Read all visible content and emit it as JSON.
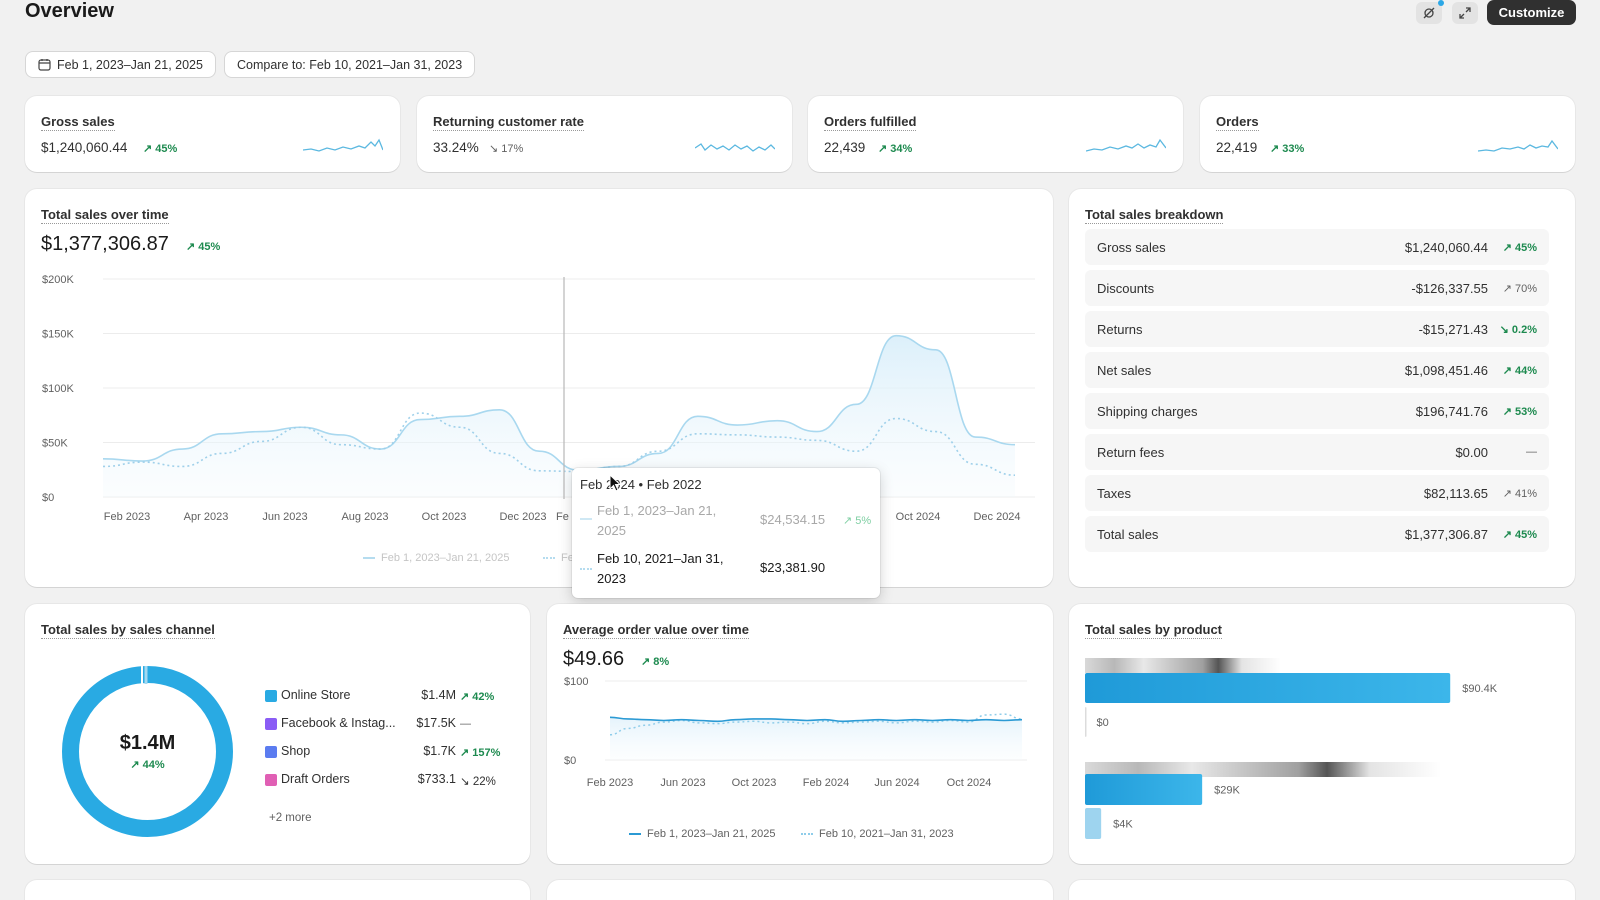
{
  "header": {
    "title": "Overview",
    "customize_label": "Customize",
    "date_range": "Feb 1, 2023–Jan 21, 2025",
    "compare": "Compare to: Feb 10, 2021–Jan 31, 2023"
  },
  "kpis": [
    {
      "title": "Gross sales",
      "value": "$1,240,060.44",
      "change": "45%",
      "direction": "up"
    },
    {
      "title": "Returning customer rate",
      "value": "33.24%",
      "change": "17%",
      "direction": "down"
    },
    {
      "title": "Orders fulfilled",
      "value": "22,439",
      "change": "34%",
      "direction": "up"
    },
    {
      "title": "Orders",
      "value": "22,419",
      "change": "33%",
      "direction": "up"
    }
  ],
  "sales_over_time": {
    "title": "Total sales over time",
    "value": "$1,377,306.87",
    "change": "45%",
    "y_ticks": [
      "$200K",
      "$150K",
      "$100K",
      "$50K",
      "$0"
    ],
    "x_ticks": [
      "Feb 2023",
      "Apr 2023",
      "Jun 2023",
      "Aug 2023",
      "Oct 2023",
      "Dec 2023",
      "Fe",
      "Oct 2024",
      "Dec 2024"
    ],
    "legend": [
      "Feb 1, 2023–Jan 21, 2025",
      "Fe"
    ],
    "chart_data": {
      "type": "line",
      "x": [
        "Feb 2023",
        "Mar 2023",
        "Apr 2023",
        "May 2023",
        "Jun 2023",
        "Jul 2023",
        "Aug 2023",
        "Sep 2023",
        "Oct 2023",
        "Nov 2023",
        "Dec 2023",
        "Jan 2024",
        "Feb 2024",
        "Mar 2024",
        "Apr 2024",
        "May 2024",
        "Jun 2024",
        "Jul 2024",
        "Aug 2024",
        "Sep 2024",
        "Oct 2024",
        "Nov 2024",
        "Dec 2024",
        "Jan 2025"
      ],
      "series": [
        {
          "name": "Feb 1, 2023–Jan 21, 2025",
          "values": [
            35000,
            33000,
            44000,
            58000,
            60000,
            64000,
            57000,
            44000,
            71000,
            74000,
            80000,
            42000,
            24500,
            28000,
            40000,
            74000,
            66000,
            70000,
            60000,
            85000,
            148000,
            135000,
            55000,
            48000
          ]
        },
        {
          "name": "Feb 10, 2021–Jan 31, 2023",
          "values": [
            28000,
            32000,
            28000,
            40000,
            51000,
            64000,
            48000,
            44000,
            77000,
            64000,
            40000,
            24000,
            23400,
            28000,
            42000,
            58000,
            57000,
            55000,
            52000,
            42000,
            72000,
            60000,
            30000,
            20000
          ]
        }
      ],
      "ylim": [
        0,
        200000
      ]
    },
    "tooltip": {
      "header": "Feb 2024 • Feb 2022",
      "row1_label": "Feb 1, 2023–Jan 21, 2025",
      "row1_value": "$24,534.15",
      "row1_change": "5%",
      "row2_label": "Feb 10, 2021–Jan 31, 2023",
      "row2_value": "$23,381.90"
    }
  },
  "breakdown": {
    "title": "Total sales breakdown",
    "rows": [
      {
        "label": "Gross sales",
        "value": "$1,240,060.44",
        "change": "45%",
        "direction": "up"
      },
      {
        "label": "Discounts",
        "value": "-$126,337.55",
        "change": "70%",
        "direction": "up-neutral"
      },
      {
        "label": "Returns",
        "value": "-$15,271.43",
        "change": "0.2%",
        "direction": "down-good"
      },
      {
        "label": "Net sales",
        "value": "$1,098,451.46",
        "change": "44%",
        "direction": "up"
      },
      {
        "label": "Shipping charges",
        "value": "$196,741.76",
        "change": "53%",
        "direction": "up"
      },
      {
        "label": "Return fees",
        "value": "$0.00",
        "change": "—",
        "direction": "none"
      },
      {
        "label": "Taxes",
        "value": "$82,113.65",
        "change": "41%",
        "direction": "up-neutral"
      },
      {
        "label": "Total sales",
        "value": "$1,377,306.87",
        "change": "45%",
        "direction": "up"
      }
    ]
  },
  "channel": {
    "title": "Total sales by sales channel",
    "center_value": "$1.4M",
    "center_change": "44%",
    "more": "+2 more",
    "items": [
      {
        "label": "Online Store",
        "value": "$1.4M",
        "change": "42%",
        "direction": "up",
        "color": "#29aae3"
      },
      {
        "label": "Facebook & Instag...",
        "value": "$17.5K",
        "change": "—",
        "direction": "none",
        "color": "#8a5cf5"
      },
      {
        "label": "Shop",
        "value": "$1.7K",
        "change": "157%",
        "direction": "up",
        "color": "#5b7cf0"
      },
      {
        "label": "Draft Orders",
        "value": "$733.1",
        "change": "22%",
        "direction": "down",
        "color": "#e05fb4"
      }
    ]
  },
  "aov": {
    "title": "Average order value over time",
    "value": "$49.66",
    "change": "8%",
    "y_ticks": [
      "$100",
      "$0"
    ],
    "x_ticks": [
      "Feb 2023",
      "Jun 2023",
      "Oct 2023",
      "Feb 2024",
      "Jun 2024",
      "Oct 2024"
    ],
    "legend": [
      "Feb 1, 2023–Jan 21, 2025",
      "Feb 10, 2021–Jan 31, 2023"
    ],
    "chart_data": {
      "type": "line",
      "x": [
        "Feb 2023",
        "Mar 2023",
        "Apr 2023",
        "May 2023",
        "Jun 2023",
        "Jul 2023",
        "Aug 2023",
        "Sep 2023",
        "Oct 2023",
        "Nov 2023",
        "Dec 2023",
        "Jan 2024",
        "Feb 2024",
        "Mar 2024",
        "Apr 2024",
        "May 2024",
        "Jun 2024",
        "Jul 2024",
        "Aug 2024",
        "Sep 2024",
        "Oct 2024",
        "Nov 2024",
        "Dec 2024",
        "Jan 2025"
      ],
      "series": [
        {
          "name": "Feb 1, 2023–Jan 21, 2025",
          "values": [
            54,
            52,
            51,
            50,
            51,
            50,
            49,
            51,
            52,
            52,
            51,
            50,
            51,
            49,
            50,
            51,
            50,
            51,
            50,
            51,
            50,
            51,
            50,
            51
          ]
        },
        {
          "name": "Feb 10, 2021–Jan 31, 2023",
          "values": [
            32,
            40,
            44,
            48,
            50,
            47,
            46,
            48,
            49,
            47,
            48,
            46,
            49,
            47,
            48,
            49,
            47,
            49,
            48,
            50,
            48,
            57,
            58,
            52
          ]
        }
      ],
      "ylim": [
        0,
        100
      ]
    }
  },
  "by_product": {
    "title": "Total sales by product",
    "chart_data": {
      "type": "bar",
      "series": [
        {
          "values": [
            90400,
            0
          ]
        },
        {
          "values": [
            29000,
            4000
          ]
        }
      ],
      "value_labels": [
        "$90.4K",
        "$0",
        "$29K",
        "$4K"
      ],
      "xlim": [
        0,
        100000
      ]
    }
  }
}
